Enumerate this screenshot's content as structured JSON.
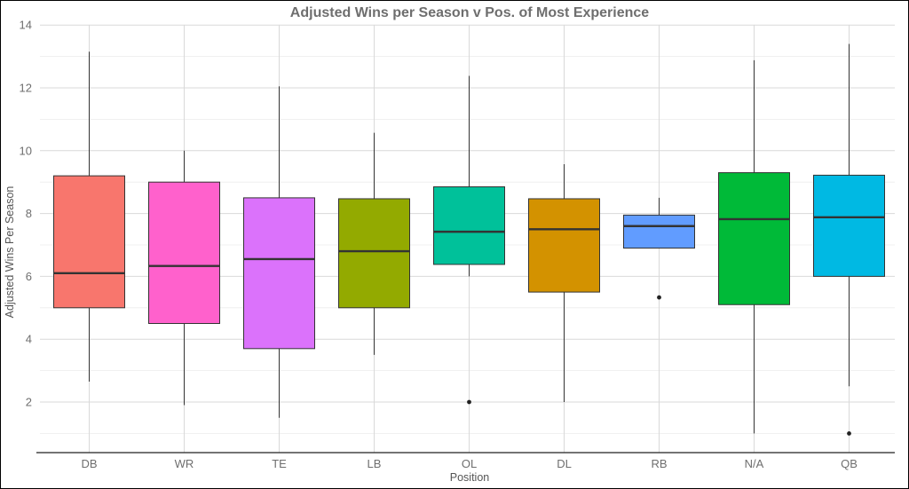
{
  "chart_data": {
    "type": "boxplot",
    "title": "Adjusted Wins per Season v Pos. of Most Experience",
    "xlabel": "Position",
    "ylabel": "Adjusted Wins Per Season",
    "ylim": [
      0.5,
      14
    ],
    "yticks": [
      2,
      4,
      6,
      8,
      10,
      12,
      14
    ],
    "grid": true,
    "legend": "none",
    "categories": [
      "DB",
      "WR",
      "TE",
      "LB",
      "OL",
      "DL",
      "RB",
      "N/A",
      "QB"
    ],
    "boxes": [
      {
        "category": "DB",
        "whisker_low": 2.65,
        "q1": 5.0,
        "median": 6.1,
        "q3": 9.2,
        "whisker_high": 13.15,
        "outliers": [],
        "color": "#F8766D"
      },
      {
        "category": "WR",
        "whisker_low": 1.9,
        "q1": 4.5,
        "median": 6.33,
        "q3": 9.0,
        "whisker_high": 10.0,
        "outliers": [],
        "color": "#FF61CC"
      },
      {
        "category": "TE",
        "whisker_low": 1.5,
        "q1": 3.7,
        "median": 6.55,
        "q3": 8.5,
        "whisker_high": 12.05,
        "outliers": [],
        "color": "#DB72FB"
      },
      {
        "category": "LB",
        "whisker_low": 3.5,
        "q1": 5.0,
        "median": 6.8,
        "q3": 8.47,
        "whisker_high": 10.57,
        "outliers": [],
        "color": "#93AA00"
      },
      {
        "category": "OL",
        "whisker_low": 6.0,
        "q1": 6.38,
        "median": 7.42,
        "q3": 8.85,
        "whisker_high": 12.38,
        "outliers": [
          2.0
        ],
        "color": "#00C19A"
      },
      {
        "category": "DL",
        "whisker_low": 2.0,
        "q1": 5.5,
        "median": 7.5,
        "q3": 8.47,
        "whisker_high": 9.57,
        "outliers": [],
        "color": "#D39200"
      },
      {
        "category": "RB",
        "whisker_low": 6.9,
        "q1": 6.9,
        "median": 7.6,
        "q3": 7.95,
        "whisker_high": 8.5,
        "outliers": [
          5.33
        ],
        "color": "#619CFF"
      },
      {
        "category": "N/A",
        "whisker_low": 1.0,
        "q1": 5.1,
        "median": 7.82,
        "q3": 9.3,
        "whisker_high": 12.88,
        "outliers": [],
        "color": "#00BA38"
      },
      {
        "category": "QB",
        "whisker_low": 2.5,
        "q1": 6.0,
        "median": 7.88,
        "q3": 9.22,
        "whisker_high": 13.4,
        "outliers": [
          1.0
        ],
        "color": "#00B9E3"
      }
    ]
  }
}
